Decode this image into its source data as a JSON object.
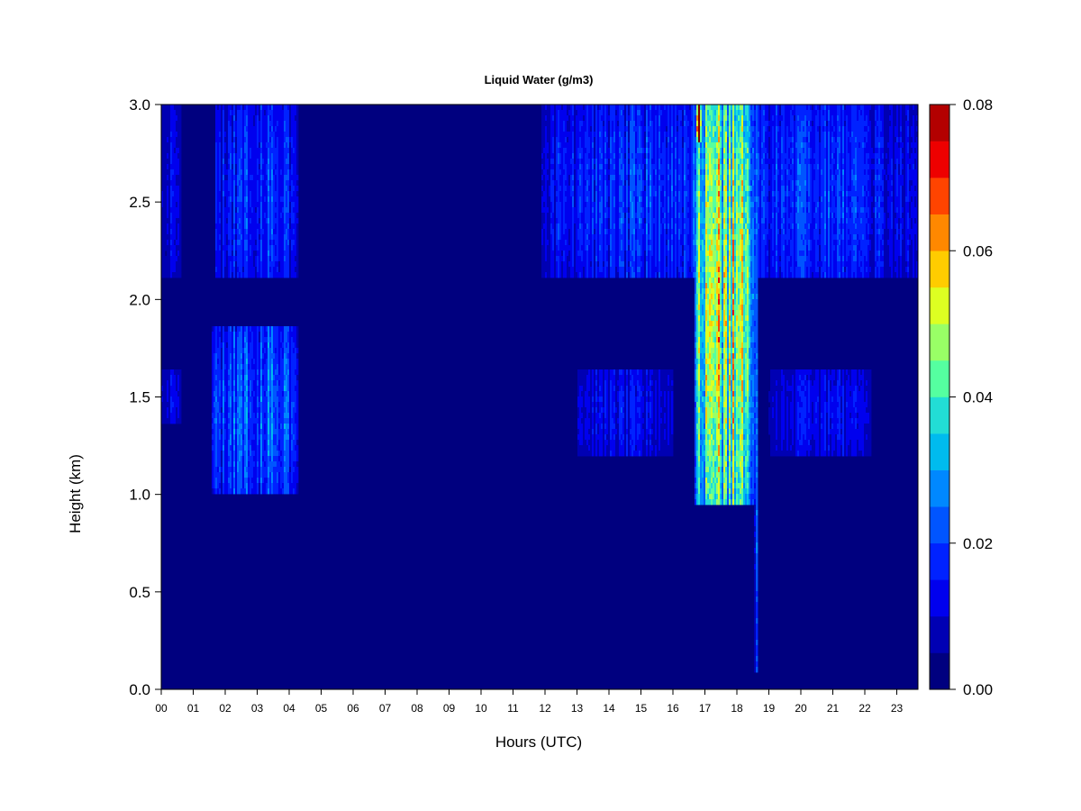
{
  "chart_data": {
    "type": "heatmap",
    "title": "Liquid Water (g/m3)",
    "xlabel": "Hours (UTC)",
    "ylabel": "Height (km)",
    "xlim": [
      0,
      23.8
    ],
    "ylim": [
      0,
      3.0
    ],
    "x_ticks": [
      "00",
      "01",
      "02",
      "03",
      "04",
      "05",
      "06",
      "07",
      "08",
      "09",
      "10",
      "11",
      "12",
      "13",
      "14",
      "15",
      "16",
      "17",
      "18",
      "19",
      "20",
      "21",
      "22",
      "23"
    ],
    "y_ticks": [
      "0.0",
      "0.5",
      "1.0",
      "1.5",
      "2.0",
      "2.5",
      "3.0"
    ],
    "y_tick_values": [
      0,
      0.5,
      1.0,
      1.5,
      2.0,
      2.5,
      3.0
    ],
    "colorbar": {
      "range": [
        0,
        0.08
      ],
      "levels": 16,
      "tick_labels": [
        "0.00",
        "0.02",
        "0.04",
        "0.06",
        "0.08"
      ],
      "tick_values": [
        0,
        0.02,
        0.04,
        0.06,
        0.08
      ],
      "colors": [
        "#00007f",
        "#0000b3",
        "#0000ee",
        "#0022ff",
        "#0055ff",
        "#0088ff",
        "#00bbee",
        "#22ddd5",
        "#55ffa0",
        "#99ff66",
        "#ddff22",
        "#ffcc00",
        "#ff8800",
        "#ff4400",
        "#ee0000",
        "#b30000",
        "#7f0000"
      ]
    },
    "features": [
      {
        "hours": [
          0.0,
          0.6
        ],
        "heights_km": [
          2.1,
          3.0
        ],
        "max_gm3": 0.012
      },
      {
        "hours": [
          0.0,
          0.6
        ],
        "heights_km": [
          1.35,
          1.65
        ],
        "max_gm3": 0.012
      },
      {
        "hours": [
          1.7,
          4.3
        ],
        "heights_km": [
          2.1,
          3.0
        ],
        "max_gm3": 0.02
      },
      {
        "hours": [
          1.6,
          4.3
        ],
        "heights_km": [
          1.0,
          1.85
        ],
        "max_gm3": 0.025
      },
      {
        "hours": [
          11.9,
          23.8
        ],
        "heights_km": [
          2.1,
          3.0
        ],
        "max_gm3": 0.02
      },
      {
        "hours": [
          13.0,
          16.0
        ],
        "heights_km": [
          1.2,
          1.65
        ],
        "max_gm3": 0.014
      },
      {
        "hours": [
          16.7,
          18.6
        ],
        "heights_km": [
          0.95,
          3.0
        ],
        "max_gm3": 0.05
      },
      {
        "hours": [
          16.75,
          16.9
        ],
        "heights_km": [
          2.8,
          3.0
        ],
        "max_gm3": 0.072
      },
      {
        "hours": [
          18.55,
          18.65
        ],
        "heights_km": [
          0.1,
          3.0
        ],
        "max_gm3": 0.02
      },
      {
        "hours": [
          19.0,
          22.2
        ],
        "heights_km": [
          1.2,
          1.65
        ],
        "max_gm3": 0.014
      }
    ]
  }
}
